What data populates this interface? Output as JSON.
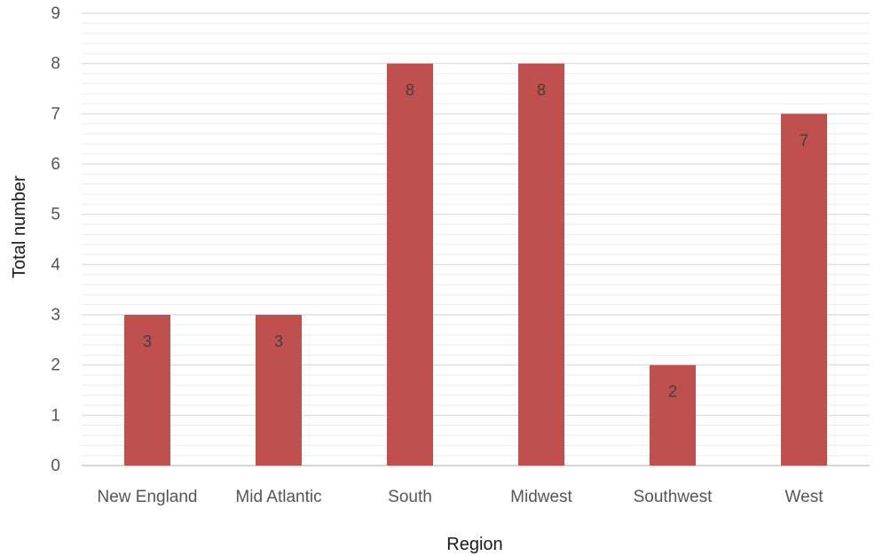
{
  "chart_data": {
    "type": "bar",
    "categories": [
      "New England",
      "Mid Atlantic",
      "South",
      "Midwest",
      "Southwest",
      "West"
    ],
    "values": [
      3,
      3,
      8,
      8,
      2,
      7
    ],
    "data_labels": [
      "3",
      "3",
      "8",
      "8",
      "2",
      "7"
    ],
    "title": "",
    "xlabel": "Region",
    "ylabel": "Total number",
    "ylim": [
      0,
      9
    ],
    "yticks": [
      "0",
      "1",
      "2",
      "3",
      "4",
      "5",
      "6",
      "7",
      "8",
      "9"
    ],
    "grid": true,
    "minor_grid": true,
    "legend": "none",
    "bar_color": "#c0504d",
    "grid_color": "#d9d9d9"
  }
}
